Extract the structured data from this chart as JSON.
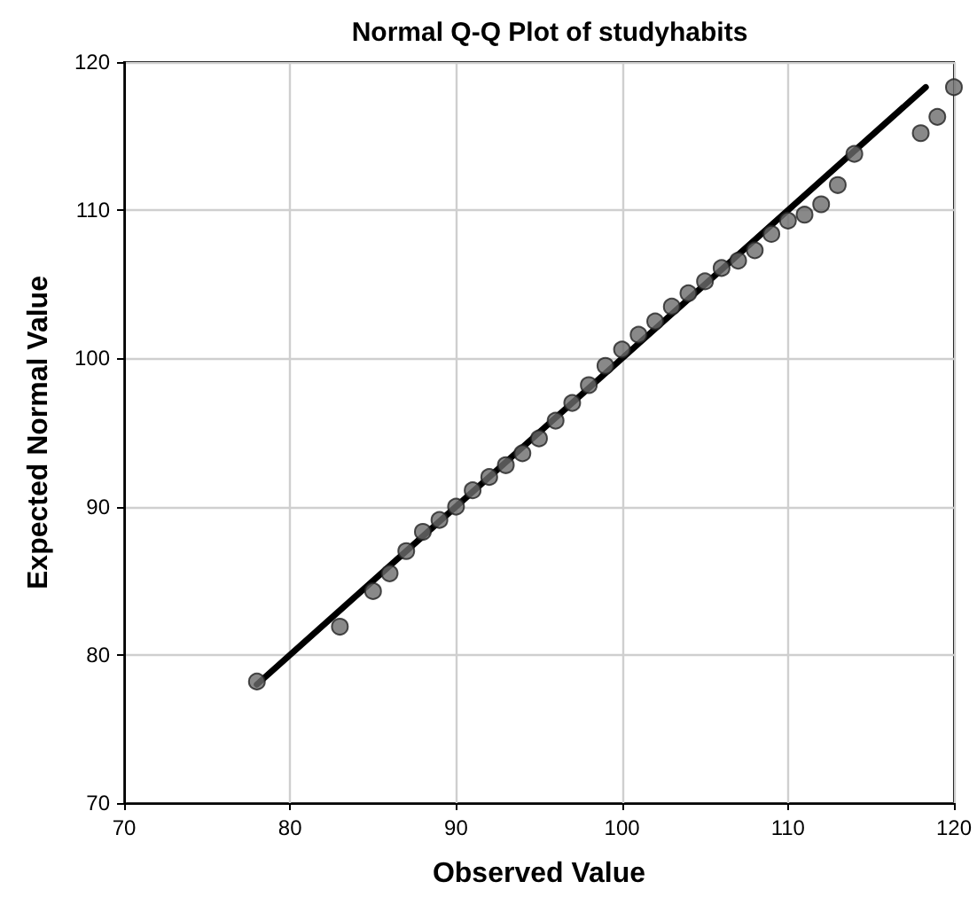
{
  "chart_data": {
    "type": "scatter",
    "title": "Normal Q-Q Plot of studyhabits",
    "xlabel": "Observed Value",
    "ylabel": "Expected Normal Value",
    "xlim": [
      70,
      120
    ],
    "xticks": [
      70,
      80,
      90,
      100,
      110,
      120
    ],
    "ylim": [
      70,
      120
    ],
    "yticks": [
      70,
      80,
      90,
      100,
      110,
      120
    ],
    "grid": true,
    "marker": "circle",
    "series": [
      {
        "color": "#6b6b6b",
        "x": [
          78,
          83,
          85,
          86,
          87,
          88,
          89,
          90,
          91,
          92,
          93,
          94,
          95,
          96,
          97,
          98,
          99,
          100,
          101,
          102,
          103,
          104,
          105,
          106,
          107,
          108,
          109,
          110,
          111,
          112,
          113,
          114,
          118,
          119,
          120
        ],
        "values": [
          78.2,
          81.9,
          84.3,
          85.5,
          87.0,
          88.3,
          89.1,
          90.0,
          91.1,
          92.0,
          92.8,
          93.6,
          94.6,
          95.8,
          97.0,
          98.2,
          99.5,
          100.6,
          101.6,
          102.5,
          103.5,
          104.4,
          105.2,
          106.1,
          106.6,
          107.3,
          108.4,
          109.3,
          109.7,
          110.4,
          111.7,
          113.8,
          115.2,
          116.3,
          118.3
        ]
      },
      {
        "type": "line",
        "marker": "none",
        "color": "#000000",
        "x": [
          78,
          118.3
        ],
        "values": [
          78,
          118.3
        ]
      }
    ]
  }
}
